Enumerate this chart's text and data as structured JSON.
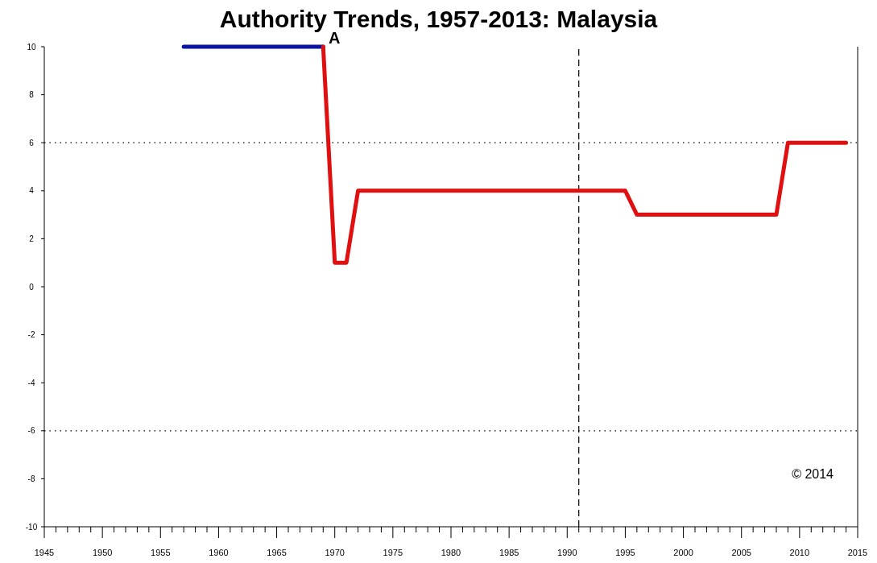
{
  "chart_data": {
    "type": "line",
    "title": "Authority Trends, 1957-2013: Malaysia",
    "series": [
      {
        "color": "#0a14a0",
        "x": [
          1957,
          1969
        ],
        "values": [
          10,
          10
        ]
      },
      {
        "color": "#e01010",
        "x": [
          1969,
          1970,
          1971,
          1972,
          1995,
          1996,
          2008,
          2009,
          2014
        ],
        "values": [
          10,
          1,
          1,
          4,
          4,
          3,
          3,
          6,
          6
        ]
      }
    ],
    "xlim": [
      1945,
      2015
    ],
    "xticks": [
      1945,
      {
        "value": 1946,
        "label": null
      },
      {
        "value": 1947,
        "label": null
      },
      {
        "value": 1948,
        "label": null
      },
      {
        "value": 1949,
        "label": null
      },
      1950,
      {
        "value": 1951,
        "label": null
      },
      {
        "value": 1952,
        "label": null
      },
      {
        "value": 1953,
        "label": null
      },
      {
        "value": 1954,
        "label": null
      },
      1955,
      {
        "value": 1956,
        "label": null
      },
      {
        "value": 1957,
        "label": null
      },
      {
        "value": 1958,
        "label": null
      },
      {
        "value": 1959,
        "label": null
      },
      1960,
      {
        "value": 1961,
        "label": null
      },
      {
        "value": 1962,
        "label": null
      },
      {
        "value": 1963,
        "label": null
      },
      {
        "value": 1964,
        "label": null
      },
      1965,
      {
        "value": 1966,
        "label": null
      },
      {
        "value": 1967,
        "label": null
      },
      {
        "value": 1968,
        "label": null
      },
      {
        "value": 1969,
        "label": null
      },
      1970,
      {
        "value": 1971,
        "label": null
      },
      {
        "value": 1972,
        "label": null
      },
      {
        "value": 1973,
        "label": null
      },
      {
        "value": 1974,
        "label": null
      },
      1975,
      {
        "value": 1976,
        "label": null
      },
      {
        "value": 1977,
        "label": null
      },
      {
        "value": 1978,
        "label": null
      },
      {
        "value": 1979,
        "label": null
      },
      1980,
      {
        "value": 1981,
        "label": null
      },
      {
        "value": 1982,
        "label": null
      },
      {
        "value": 1983,
        "label": null
      },
      {
        "value": 1984,
        "label": null
      },
      1985,
      {
        "value": 1986,
        "label": null
      },
      {
        "value": 1987,
        "label": null
      },
      {
        "value": 1988,
        "label": null
      },
      {
        "value": 1989,
        "label": null
      },
      1990,
      {
        "value": 1991,
        "label": null
      },
      {
        "value": 1992,
        "label": null
      },
      {
        "value": 1993,
        "label": null
      },
      {
        "value": 1994,
        "label": null
      },
      1995,
      {
        "value": 1996,
        "label": null
      },
      {
        "value": 1997,
        "label": null
      },
      {
        "value": 1998,
        "label": null
      },
      {
        "value": 1999,
        "label": null
      },
      2000,
      {
        "value": 2001,
        "label": null
      },
      {
        "value": 2002,
        "label": null
      },
      {
        "value": 2003,
        "label": null
      },
      {
        "value": 2004,
        "label": null
      },
      2005,
      {
        "value": 2006,
        "label": null
      },
      {
        "value": 2007,
        "label": null
      },
      {
        "value": 2008,
        "label": null
      },
      {
        "value": 2009,
        "label": null
      },
      2010,
      {
        "value": 2011,
        "label": null
      },
      {
        "value": 2012,
        "label": null
      },
      {
        "value": 2013,
        "label": null
      },
      {
        "value": 2014,
        "label": null
      },
      2015
    ],
    "ylim": [
      -10,
      10
    ],
    "yticks": [
      -10,
      -8,
      -6,
      -4,
      -2,
      0,
      2,
      4,
      6,
      8,
      10
    ],
    "ref_lines": [
      {
        "axis": "y",
        "value": 6,
        "line_style": "dotted",
        "color": "#000000"
      },
      {
        "axis": "y",
        "value": -6,
        "line_style": "dotted",
        "color": "#000000"
      },
      {
        "axis": "x",
        "value": 1991,
        "line_style": "dashed",
        "color": "#000000"
      }
    ],
    "annotations": [
      {
        "text": "A",
        "x": 1969,
        "y": 10
      },
      "© 2014"
    ],
    "grid": false,
    "marker": "none",
    "line_style": "solid"
  }
}
